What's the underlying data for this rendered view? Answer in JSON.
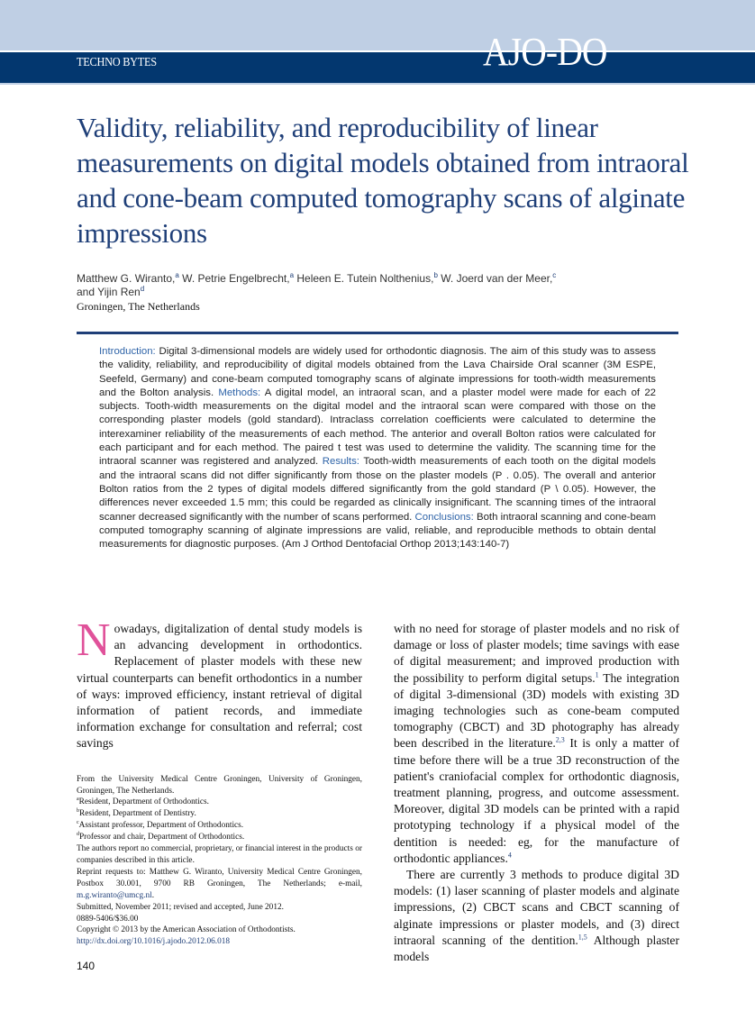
{
  "header": {
    "section": "TECHNO BYTES",
    "journal_logo": "AJO-DO",
    "colors": {
      "band": "#03376f",
      "top": "#bfcfe4",
      "title": "#1f3f78",
      "accent": "#2f64a8",
      "dropcap": "#e0529a"
    }
  },
  "title": "Validity, reliability, and reproducibility of linear measurements on digital models obtained from intraoral and cone-beam computed tomography scans of alginate impressions",
  "authors": [
    {
      "name": "Matthew G. Wiranto,",
      "sup": "a"
    },
    {
      "name": " W. Petrie Engelbrecht,",
      "sup": "a"
    },
    {
      "name": " Heleen E. Tutein Nolthenius,",
      "sup": "b"
    },
    {
      "name": " W. Joerd van der Meer,",
      "sup": "c"
    },
    {
      "name": " and Yijin Ren",
      "sup": "d"
    }
  ],
  "location": "Groningen, The Netherlands",
  "abstract": [
    {
      "h": "Introduction: ",
      "t": "Digital 3-dimensional models are widely used for orthodontic diagnosis. The aim of this study was to assess the validity, reliability, and reproducibility of digital models obtained from the Lava Chairside Oral scanner (3M ESPE, Seefeld, Germany) and cone-beam computed tomography scans of alginate impressions for tooth-width measurements and the Bolton analysis. "
    },
    {
      "h": "Methods: ",
      "t": "A digital model, an intraoral scan, and a plaster model were made for each of 22 subjects. Tooth-width measurements on the digital model and the intraoral scan were compared with those on the corresponding plaster models (gold standard). Intraclass correlation coefficients were calculated to determine the interexaminer reliability of the measurements of each method. The anterior and overall Bolton ratios were calculated for each participant and for each method. The paired t test was used to determine the validity. The scanning time for the intraoral scanner was registered and analyzed. "
    },
    {
      "h": "Results: ",
      "t": "Tooth-width measurements of each tooth on the digital models and the intraoral scans did not differ significantly from those on the plaster models (P . 0.05). The overall and anterior Bolton ratios from the 2 types of digital models differed significantly from the gold standard (P \\ 0.05). However, the differences never exceeded 1.5 mm; this could be regarded as clinically insignificant. The scanning times of the intraoral scanner decreased significantly with the number of scans performed. "
    },
    {
      "h": "Conclusions: ",
      "t": "Both intraoral scanning and cone-beam computed tomography scanning of alginate impressions are valid, reliable, and reproducible methods to obtain dental measurements for diagnostic purposes. (Am J Orthod Dentofacial Orthop 2013;143:140-7)"
    }
  ],
  "body_left": {
    "drop_cap": "N",
    "paragraphs": [
      [
        {
          "t": "owadays, digitalization of dental study models is an advancing development in orthodontics. Replacement of plaster models with these new virtual counterparts can benefit orthodontics in a number of ways: improved efficiency, instant retrieval of digital information of patient records, and immediate information exchange for consultation and referral; cost savings"
        }
      ]
    ]
  },
  "body_right": {
    "paragraphs": [
      [
        {
          "t": "with no need for storage of plaster models and no risk of damage or loss of plaster models; time savings with ease of digital measurement; and improved production with the possibility to perform digital setups."
        },
        {
          "sup": "1"
        },
        {
          "t": " The integration of digital 3-dimensional (3D) models with existing 3D imaging technologies such as cone-beam computed tomography (CBCT) and 3D photography has already been described in the literature."
        },
        {
          "sup": "2,3"
        },
        {
          "t": " It is only a matter of time before there will be a true 3D reconstruction of the patient's craniofacial complex for orthodontic diagnosis, treatment planning, progress, and outcome assessment. Moreover, digital 3D models can be printed with a rapid prototyping technology if a physical model of the dentition is needed: eg, for the manufacture of orthodontic appliances."
        },
        {
          "sup": "4"
        }
      ],
      [
        {
          "t": "There are currently 3 methods to produce digital 3D models: (1) laser scanning of plaster models and alginate impressions, (2) CBCT scans and CBCT scanning of alginate impressions or plaster models, and (3) direct intraoral scanning of the dentition."
        },
        {
          "sup": "1,5"
        },
        {
          "t": " Although plaster models"
        }
      ]
    ]
  },
  "footnotes": [
    {
      "t": "From the University Medical Centre Groningen, University of Groningen, Groningen, The Netherlands."
    },
    {
      "sup": "a",
      "t": "Resident, Department of Orthodontics."
    },
    {
      "sup": "b",
      "t": "Resident, Department of Dentistry."
    },
    {
      "sup": "c",
      "t": "Assistant professor, Department of Orthodontics."
    },
    {
      "sup": "d",
      "t": "Professor and chair, Department of Orthodontics."
    },
    {
      "t": "The authors report no commercial, proprietary, or financial interest in the products or companies described in this article."
    },
    {
      "t": "Reprint requests to: Matthew G. Wiranto, University Medical Centre Groningen, Postbox 30.001, 9700 RB Groningen, The Netherlands; e-mail, ",
      "link": "m.g.wiranto@umcg.nl",
      "after": "."
    },
    {
      "t": "Submitted, November 2011; revised and accepted, June 2012."
    },
    {
      "t": "0889-5406/$36.00"
    },
    {
      "t": "Copyright © 2013 by the American Association of Orthodontists."
    },
    {
      "link": "http://dx.doi.org/10.1016/j.ajodo.2012.06.018"
    }
  ],
  "page_number": "140"
}
